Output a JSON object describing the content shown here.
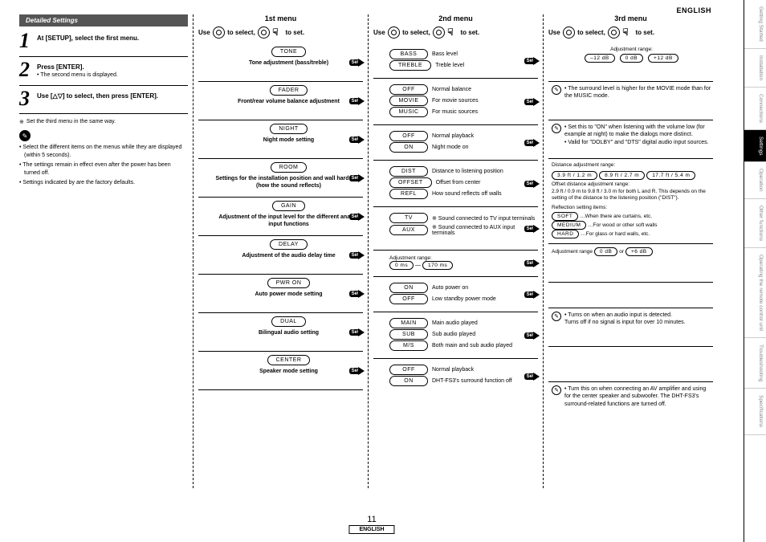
{
  "header": {
    "english_top": "ENGLISH"
  },
  "side_tabs": [
    "Getting Started",
    "Installation",
    "Connections",
    "Settings",
    "Operation",
    "Other functions",
    "Operating the remote control unit",
    "Troubleshooting",
    "Specifications"
  ],
  "left": {
    "header": "Detailed Settings",
    "step1": "At [SETUP], select the first menu.",
    "step2": "Press [ENTER].",
    "step2_sub": "The second menu is displayed.",
    "step3": "Use [△▽] to select, then press [ENTER].",
    "note": "Set the third menu in the same way.",
    "bullets": [
      "Select the different items on the menus while they are displayed (within 5 seconds).",
      "The settings remain in effect even after the power has been turned off.",
      "Settings indicated by        are the factory defaults."
    ]
  },
  "menu1": {
    "title": "1st menu",
    "use": "Use         to select,            to set.",
    "set": "Set",
    "items": [
      {
        "pill": "TONE",
        "desc": "Tone adjustment (bass/treble)"
      },
      {
        "pill": "FADER",
        "desc": "Front/rear volume balance adjustment"
      },
      {
        "pill": "NIGHT",
        "desc": "Night mode setting"
      },
      {
        "pill": "ROOM",
        "desc": "Settings for the installation position and wall hardness\n(how the sound reflects)"
      },
      {
        "pill": "GAIN",
        "desc": "Adjustment of the input level for the different analog input functions"
      },
      {
        "pill": "DELAY",
        "desc": "Adjustment of the audio delay time"
      },
      {
        "pill": "PWR ON",
        "desc": "Auto power mode setting"
      },
      {
        "pill": "DUAL",
        "desc": "Bilingual audio setting"
      },
      {
        "pill": "CENTER",
        "desc": "Speaker mode setting"
      }
    ]
  },
  "menu2": {
    "title": "2nd menu",
    "use": "Use                 to       select,             to set.",
    "set": "Set",
    "rows": [
      [
        {
          "p": "BASS",
          "t": "Bass level"
        },
        {
          "p": "TREBLE",
          "t": "Treble level"
        }
      ],
      [
        {
          "p": "OFF",
          "t": "Normal balance"
        },
        {
          "p": "MOVIE",
          "t": "For movie sources"
        },
        {
          "p": "MUSIC",
          "t": "For music sources"
        }
      ],
      [
        {
          "p": "OFF",
          "t": "Normal playback"
        },
        {
          "p": "ON",
          "t": "Night mode on"
        }
      ],
      [
        {
          "p": "DIST",
          "t": "Distance to listening position"
        },
        {
          "p": "OFFSET",
          "t": "Offset from center"
        },
        {
          "p": "REFL",
          "t": "How sound reflects off walls"
        }
      ],
      [
        {
          "p": "TV",
          "t": "※ Sound connected to TV input terminals"
        },
        {
          "p": "AUX",
          "t": "※ Sound connected to AUX input terminals"
        }
      ],
      [
        {
          "label": "Adjustment range:",
          "p1": "0 ms",
          "p2": "170 ms"
        }
      ],
      [
        {
          "p": "ON",
          "t": "Auto power on"
        },
        {
          "p": "OFF",
          "t": "Low standby power mode"
        }
      ],
      [
        {
          "p": "MAIN",
          "t": "Main audio played"
        },
        {
          "p": "SUB",
          "t": "Sub audio played"
        },
        {
          "p": "M/S",
          "t": "Both main and sub audio played"
        }
      ],
      [
        {
          "p": "OFF",
          "t": "Normal playback"
        },
        {
          "p": "ON",
          "t": "DHT-FS3's surround function off"
        }
      ]
    ]
  },
  "menu3": {
    "title": "3rd menu",
    "use": "Use                 to       select,             to set.",
    "adj_label": "Adjustment range:",
    "adj_pills": [
      "–12 dB",
      "0 dB",
      "+12 dB"
    ],
    "note_movie": "The surround level is higher for the MOVIE mode than for the MUSIC mode.",
    "night_b1": "Set this to \"ON\" when listening with the volume low (for example at night) to make the dialogs more distinct.",
    "night_b2": "Valid for \"DOLBY\" and \"DTS\" digital audio input sources.",
    "room_dist_label": "Distance adjustment range:",
    "room_dist_pills": [
      "3.9 ft / 1.2 m",
      "8.9 ft / 2.7 m",
      "17.7 ft / 5.4 m"
    ],
    "room_offset_label": "Offset distance adjustment range:",
    "room_offset_text": "2.9 ft / 0.9 m to 9.8 ft / 3.0 m for both L and R. This depends on the setting of the distance to the listening position (\"DIST\").",
    "room_refl_label": "Reflection setting items:",
    "room_refl_items": [
      {
        "p": "SOFT",
        "t": "…When there are curtains, etc."
      },
      {
        "p": "MEDIUM",
        "t": "…For wood or other soft walls"
      },
      {
        "p": "HARD",
        "t": "…For glass or hard walls, etc."
      }
    ],
    "gain_label": "Adjustment range",
    "gain_pills": [
      "0 dB",
      "+6 dB"
    ],
    "gain_or": "or",
    "pwron": "Turns on when an audio input is detected.\nTurns off if no signal is input for over 10 minutes.",
    "center": "Turn this on when connecting an AV amplifier and using for the center speaker and subwoofer. The DHT-FS3's surround-related functions are turned off."
  },
  "footer": {
    "page": "11",
    "lang": "ENGLISH"
  }
}
